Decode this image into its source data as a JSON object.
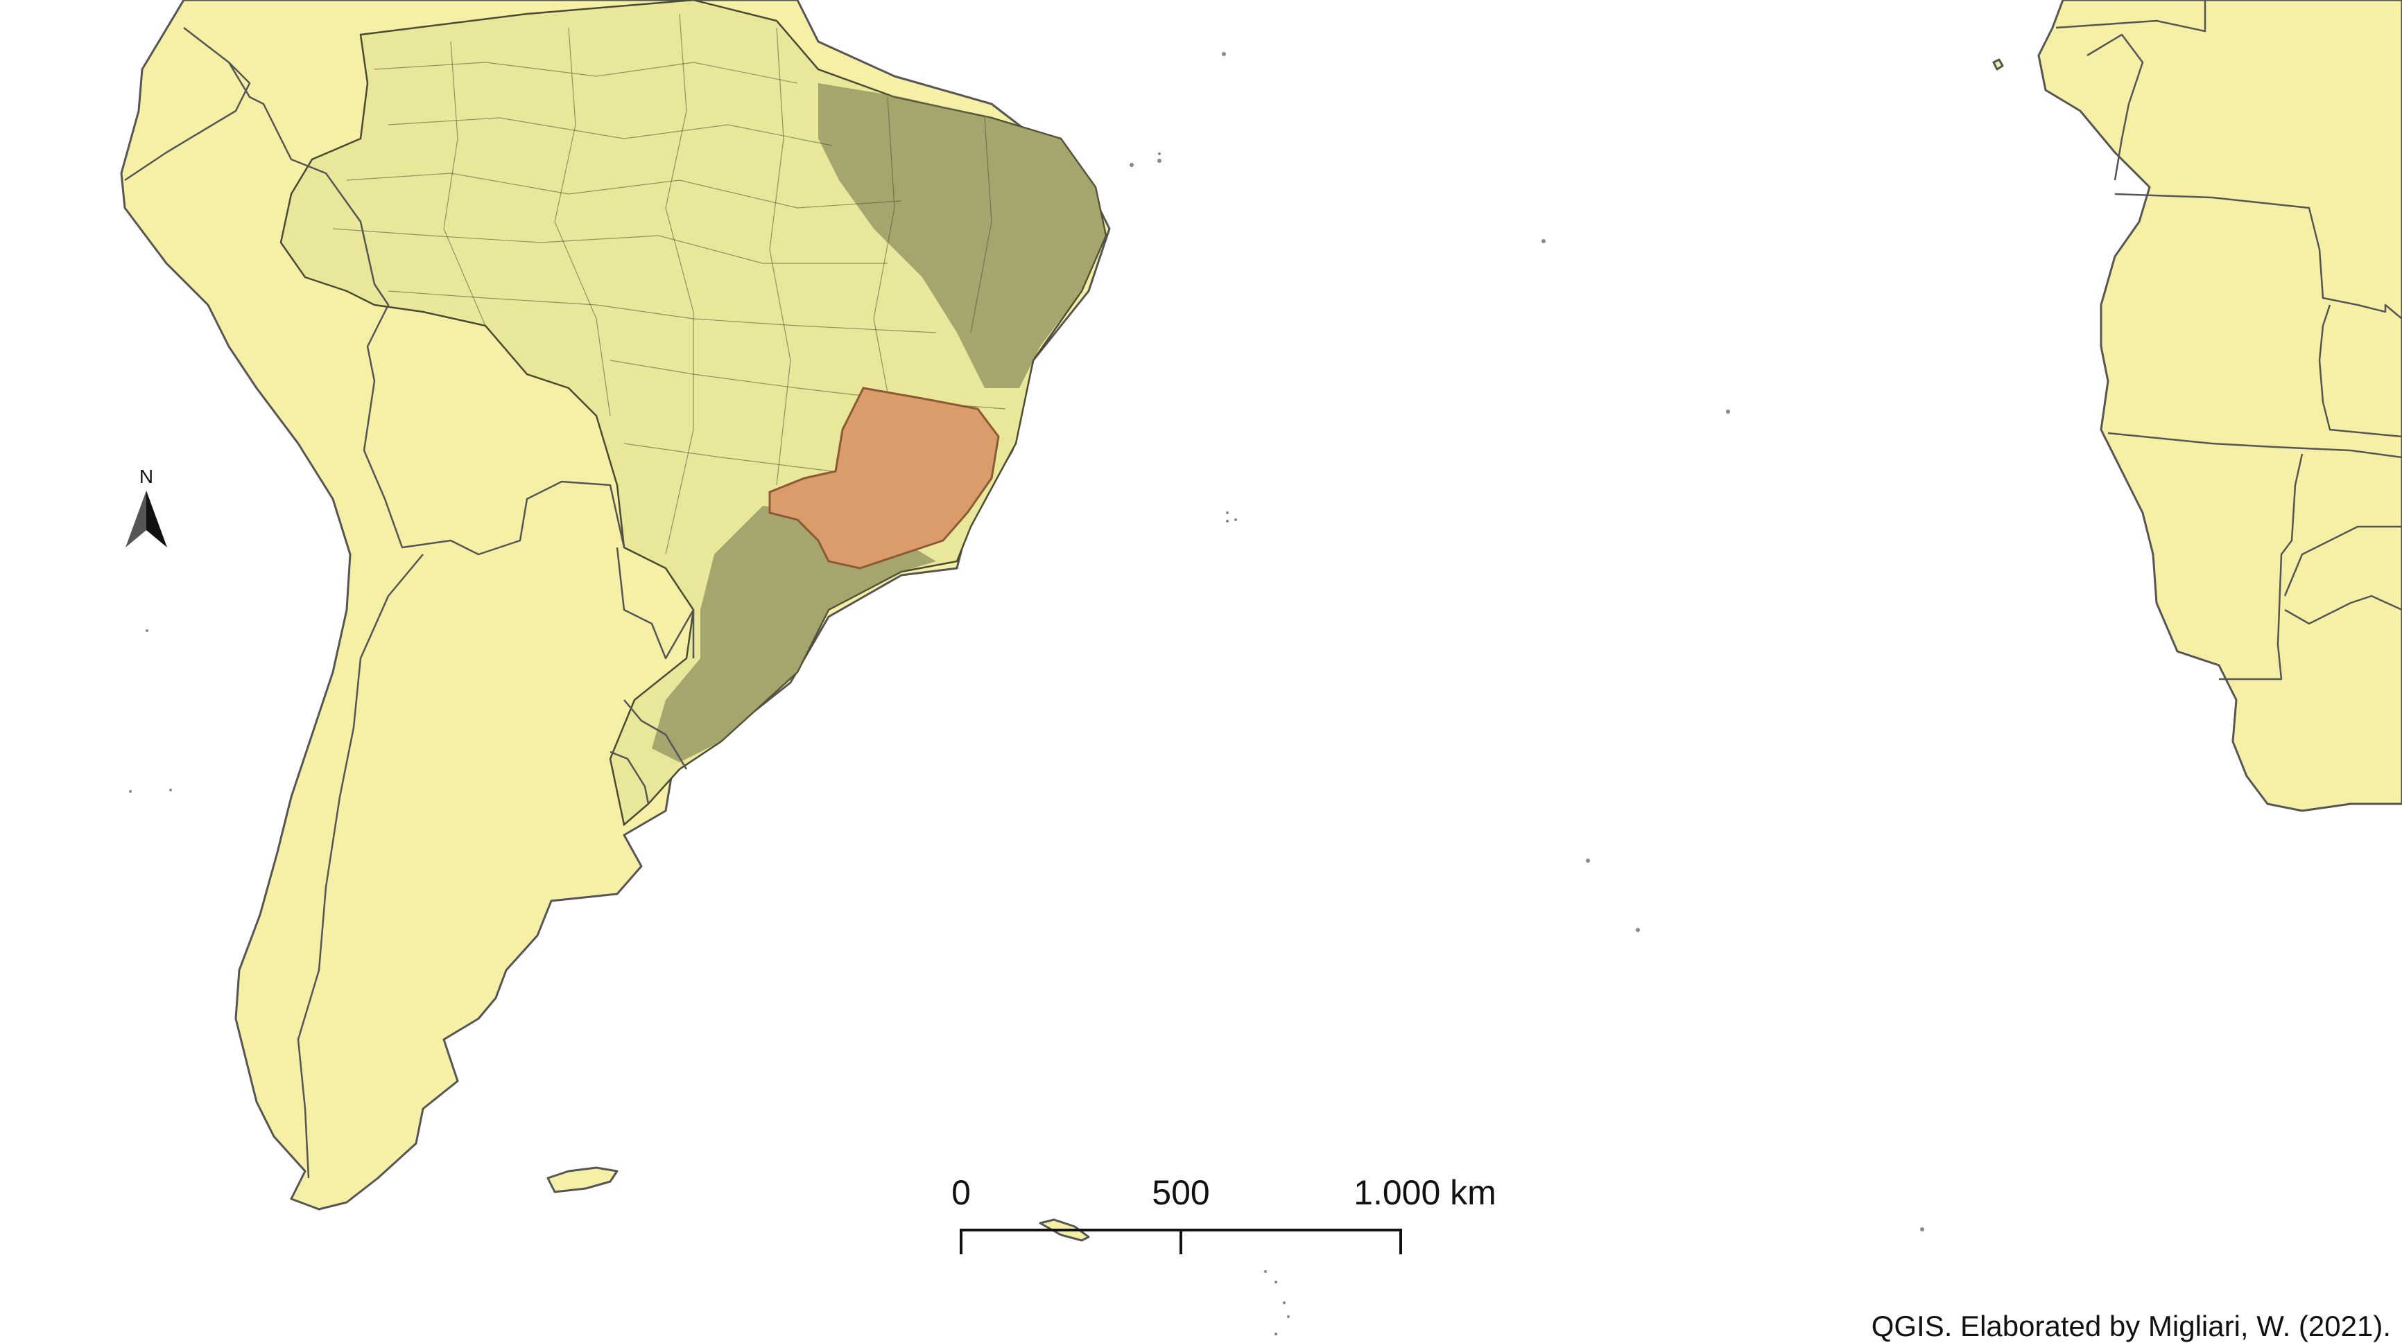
{
  "north_arrow": {
    "label": "N"
  },
  "scale_bar": {
    "ticks": [
      "0",
      "500",
      "1.000 km"
    ],
    "values_km": [
      0,
      500,
      1000
    ]
  },
  "attribution": "QGIS. Elaborated by Migliari, W. (2021).",
  "colors": {
    "land": "#f5f0a6",
    "brazil_municipalities": "#e8e79a",
    "highlighted_state": "#d99c6a",
    "borders": "#555555"
  }
}
